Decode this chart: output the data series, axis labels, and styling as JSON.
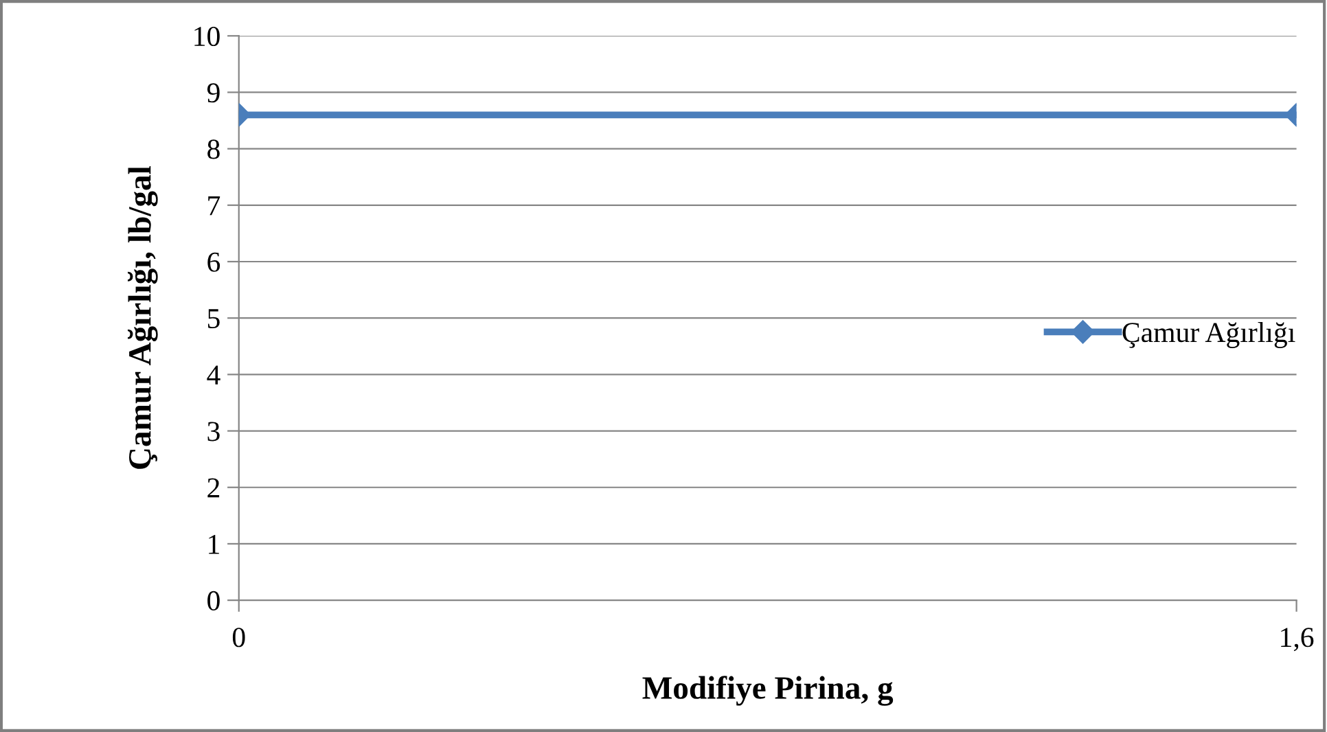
{
  "chart_data": {
    "type": "line",
    "xlabel": "Modifiye Pirina, g",
    "ylabel": "Çamur Ağırlığı, lb/gal",
    "x": [
      0,
      1.6
    ],
    "xlim": [
      0,
      1.6
    ],
    "xticks": [
      0,
      {
        "value": 1.6,
        "label": "1,6"
      }
    ],
    "series": [
      {
        "name": "Çamur Ağırlığı",
        "color": "#4a7ebb",
        "values": [
          8.6,
          8.6
        ]
      }
    ],
    "ylim": [
      0,
      10
    ],
    "yticks": [
      0,
      1,
      2,
      3,
      4,
      5,
      6,
      7,
      8,
      9,
      10
    ],
    "grid": "y",
    "legend": "right",
    "marker": "diamond",
    "line_style": "solid"
  }
}
